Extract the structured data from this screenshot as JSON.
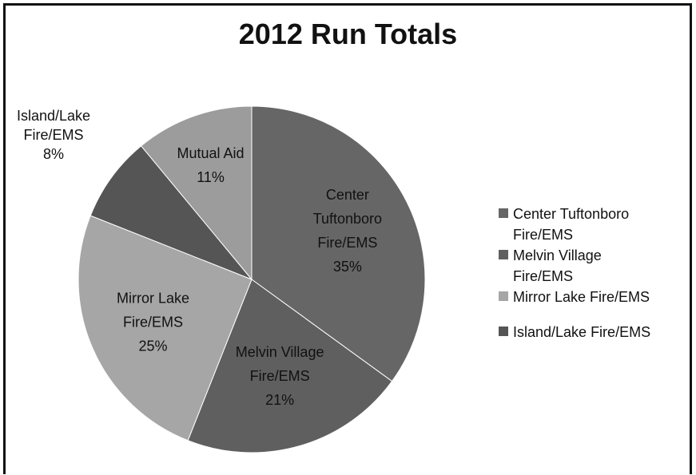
{
  "chart_data": {
    "type": "pie",
    "title": "2012 Run Totals",
    "slices": [
      {
        "label": "Center Tuftonboro Fire/EMS",
        "display_label": [
          "Center",
          "Tuftonboro",
          "Fire/EMS"
        ],
        "value": 35,
        "display_value": "35%",
        "color": "#666666",
        "legend_label": [
          "Center Tuftonboro",
          "Fire/EMS"
        ]
      },
      {
        "label": "Melvin Village Fire/EMS",
        "display_label": [
          "Melvin Village",
          "Fire/EMS"
        ],
        "value": 21,
        "display_value": "21%",
        "color": "#5f5f5f",
        "legend_label": [
          "Melvin Village",
          "Fire/EMS"
        ]
      },
      {
        "label": "Mirror Lake Fire/EMS",
        "display_label": [
          "Mirror Lake",
          "Fire/EMS"
        ],
        "value": 25,
        "display_value": "25%",
        "color": "#a6a6a6",
        "legend_label": [
          "Mirror Lake Fire/EMS"
        ]
      },
      {
        "label": "Island/Lake Fire/EMS",
        "display_label": [
          "Island/Lake",
          "Fire/EMS"
        ],
        "value": 8,
        "display_value": "8%",
        "color": "#555555",
        "legend_label": [
          "Island/Lake Fire/EMS"
        ]
      },
      {
        "label": "Mutual Aid",
        "display_label": [
          "Mutual Aid"
        ],
        "value": 11,
        "display_value": "11%",
        "color": "#9c9c9c",
        "legend_label": []
      }
    ],
    "legend_placement": "right",
    "start_angle_deg": 0,
    "direction": "clockwise"
  }
}
